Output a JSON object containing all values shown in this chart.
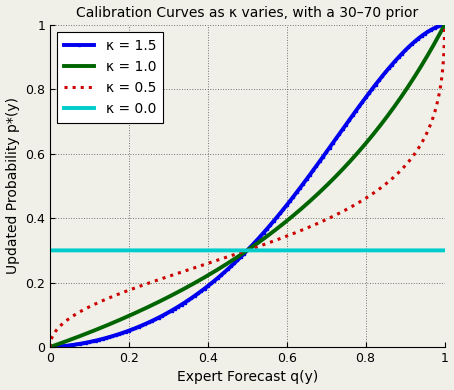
{
  "title": "Calibration Curves as κ varies, with a 30–70 prior",
  "xlabel": "Expert Forecast q(y)",
  "ylabel": "Updated Probability p*(y)",
  "prior_alpha": 0.3,
  "prior_beta": 0.7,
  "kappas": [
    1.5,
    1.0,
    0.5,
    0.0
  ],
  "colors": [
    "#0000ee",
    "#006400",
    "#cc0000",
    "#00cccc"
  ],
  "linestyles": [
    "-",
    "-",
    ":",
    "-"
  ],
  "linewidths": [
    2.8,
    2.8,
    2.2,
    2.8
  ],
  "legend_labels": [
    "κ = 1.5",
    "κ = 1.0",
    "κ = 0.5",
    "κ = 0.0"
  ],
  "xlim": [
    0,
    1
  ],
  "ylim": [
    0,
    1
  ],
  "xticks": [
    0,
    0.2,
    0.4,
    0.6,
    0.8,
    1.0
  ],
  "yticks": [
    0,
    0.2,
    0.4,
    0.6,
    0.8,
    1.0
  ],
  "grid_color": "#555555",
  "grid_linestyle": ":",
  "background_color": "#f0f0e8",
  "title_fontsize": 10,
  "label_fontsize": 10,
  "tick_fontsize": 9,
  "legend_fontsize": 10
}
